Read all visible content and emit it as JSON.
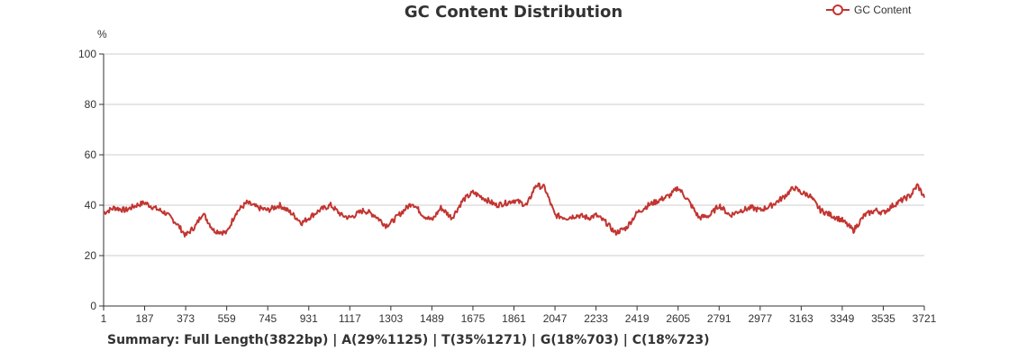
{
  "chart_data": {
    "type": "line",
    "title": "GC Content Distribution",
    "ylabel": "%",
    "xlabel": "",
    "ylim": [
      0,
      100
    ],
    "yticks": [
      0,
      20,
      40,
      60,
      80,
      100
    ],
    "xlim": [
      1,
      3721
    ],
    "xticks": [
      1,
      187,
      373,
      559,
      745,
      931,
      1117,
      1303,
      1489,
      1675,
      1861,
      2047,
      2233,
      2419,
      2605,
      2791,
      2977,
      3163,
      3349,
      3535,
      3721
    ],
    "grid": true,
    "legend": "top-right",
    "colors": {
      "line": "#c23531"
    },
    "series": [
      {
        "name": "GC Content",
        "x": [
          1,
          50,
          100,
          150,
          187,
          230,
          280,
          330,
          373,
          420,
          450,
          500,
          559,
          600,
          650,
          700,
          745,
          800,
          850,
          900,
          931,
          980,
          1030,
          1080,
          1117,
          1180,
          1230,
          1280,
          1303,
          1350,
          1400,
          1450,
          1489,
          1530,
          1580,
          1630,
          1675,
          1720,
          1780,
          1830,
          1861,
          1920,
          1960,
          2000,
          2047,
          2100,
          2150,
          2200,
          2233,
          2280,
          2320,
          2370,
          2419,
          2470,
          2520,
          2570,
          2605,
          2650,
          2700,
          2750,
          2791,
          2840,
          2890,
          2940,
          2977,
          3030,
          3080,
          3130,
          3163,
          3200,
          3250,
          3300,
          3349,
          3400,
          3450,
          3500,
          3535,
          3580,
          3620,
          3660,
          3690,
          3721
        ],
        "values": [
          37,
          39,
          38,
          40,
          41,
          39,
          37,
          33,
          28,
          32,
          37,
          30,
          29,
          37,
          41,
          39,
          38,
          40,
          37,
          33,
          35,
          38,
          40,
          36,
          35,
          38,
          36,
          32,
          33,
          37,
          41,
          36,
          34,
          39,
          35,
          42,
          45,
          43,
          40,
          41,
          42,
          40,
          48,
          47,
          36,
          35,
          36,
          35,
          36,
          33,
          29,
          31,
          37,
          40,
          42,
          44,
          47,
          42,
          35,
          36,
          40,
          36,
          38,
          39,
          38,
          40,
          43,
          47,
          45,
          44,
          38,
          36,
          34,
          30,
          36,
          38,
          37,
          40,
          42,
          44,
          48,
          43
        ]
      }
    ]
  }
}
